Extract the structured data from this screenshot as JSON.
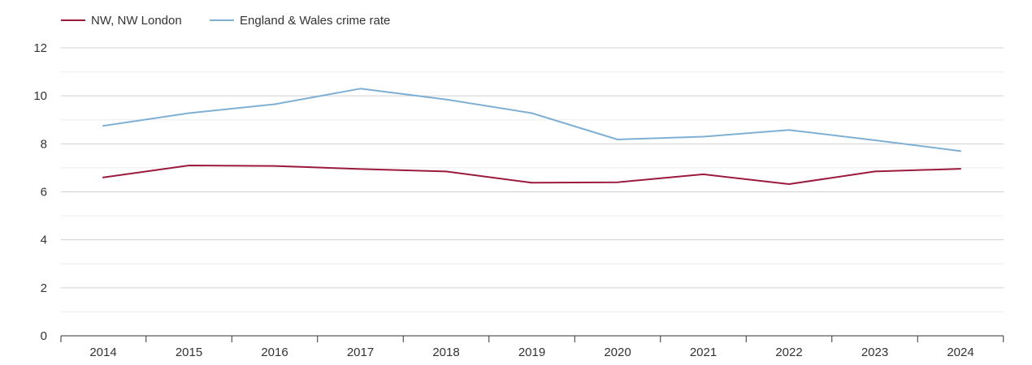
{
  "chart_data": {
    "type": "line",
    "title": "",
    "xlabel": "",
    "ylabel": "",
    "x": [
      2014,
      2015,
      2016,
      2017,
      2018,
      2019,
      2020,
      2021,
      2022,
      2023,
      2024
    ],
    "ylim": [
      0,
      12
    ],
    "yticks": [
      0,
      2,
      4,
      6,
      8,
      10,
      12
    ],
    "grid": true,
    "legend_position": "top-left",
    "series": [
      {
        "name": "NW, NW London",
        "color": "#9b1a3c",
        "values": [
          6.6,
          7.1,
          7.08,
          6.95,
          6.85,
          6.38,
          6.4,
          6.73,
          6.32,
          6.85,
          6.96
        ]
      },
      {
        "name": "England & Wales crime rate",
        "color": "#7fb0d4",
        "values": [
          8.75,
          9.28,
          9.65,
          10.3,
          9.85,
          9.28,
          8.18,
          8.3,
          8.58,
          8.15,
          7.7
        ]
      }
    ]
  }
}
